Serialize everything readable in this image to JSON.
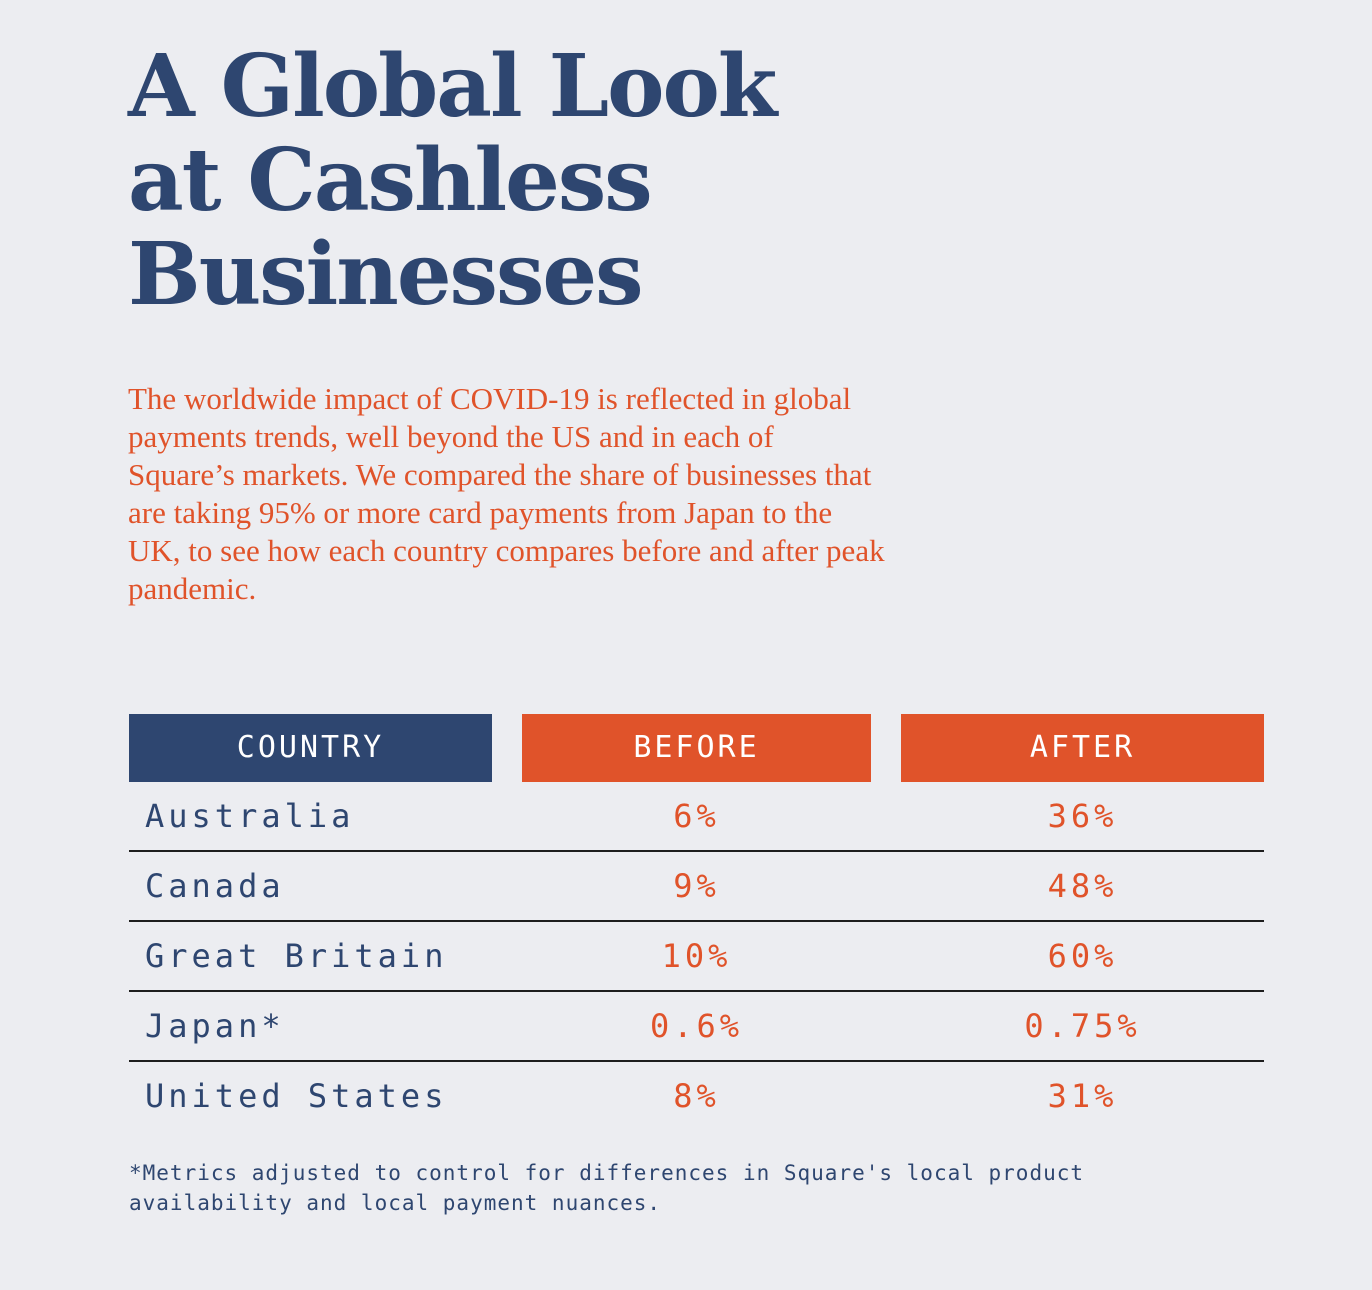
{
  "title": "A Global Look at Cashless Businesses",
  "intro": "The worldwide impact of COVID-19 is reflected in global payments trends, well beyond the US and in each of Square’s markets. We compared the share of businesses that are taking 95% or more card payments from Japan to the UK, to see how each country compares before and after peak pandemic.",
  "colors": {
    "navy": "#2e4670",
    "orange": "#e0532a",
    "background": "#ecedf1"
  },
  "chart_data": {
    "type": "table",
    "columns": [
      "COUNTRY",
      "BEFORE",
      "AFTER"
    ],
    "rows": [
      {
        "country": "Australia",
        "before": "6%",
        "after": "36%"
      },
      {
        "country": "Canada",
        "before": "9%",
        "after": "48%"
      },
      {
        "country": "Great Britain",
        "before": "10%",
        "after": "60%"
      },
      {
        "country": "Japan*",
        "before": "0.6%",
        "after": "0.75%"
      },
      {
        "country": "United States",
        "before": "8%",
        "after": "31%"
      }
    ]
  },
  "footnote": "*Metrics adjusted to control for differences in Square's local product availability and local payment nuances."
}
